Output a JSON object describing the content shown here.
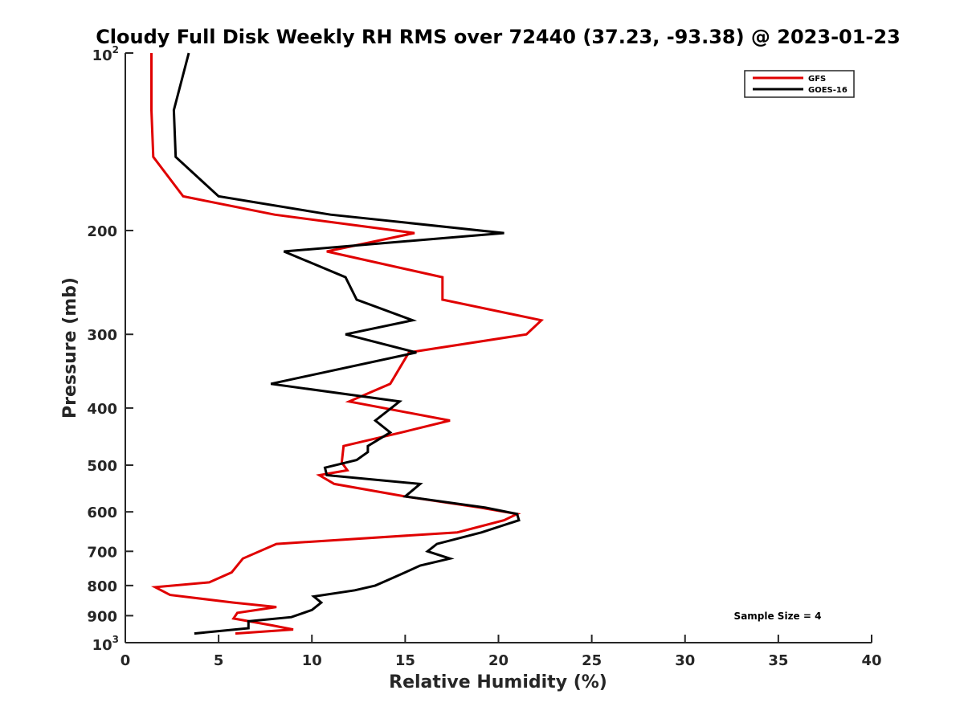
{
  "chart_data": {
    "type": "line",
    "title": "Cloudy Full Disk Weekly RH RMS over 72440 (37.23, -93.38) @ 2023-01-23",
    "xlabel": "Relative Humidity (%)",
    "ylabel": "Pressure (mb)",
    "xlim": [
      0,
      40
    ],
    "ylim": [
      100,
      1000
    ],
    "y_scale": "log",
    "y_reversed": true,
    "grid": false,
    "legend_position": "top-right",
    "x_ticks": [
      "0",
      "5",
      "10",
      "15",
      "20",
      "25",
      "30",
      "35",
      "40"
    ],
    "y_ticks": [
      {
        "value": 100,
        "base": "10",
        "exp": "2"
      },
      {
        "value": 200,
        "label": "200"
      },
      {
        "value": 300,
        "label": "300"
      },
      {
        "value": 400,
        "label": "400"
      },
      {
        "value": 500,
        "label": "500"
      },
      {
        "value": 600,
        "label": "600"
      },
      {
        "value": 700,
        "label": "700"
      },
      {
        "value": 800,
        "label": "800"
      },
      {
        "value": 900,
        "label": "900"
      },
      {
        "value": 1000,
        "base": "10",
        "exp": "3"
      }
    ],
    "annotation": "Sample Size = 4",
    "series": [
      {
        "name": "GFS",
        "color": "#e00000",
        "points": [
          [
            1.4,
            100
          ],
          [
            1.4,
            125
          ],
          [
            1.5,
            150
          ],
          [
            3.1,
            175
          ],
          [
            8.0,
            188
          ],
          [
            15.5,
            202
          ],
          [
            10.8,
            217
          ],
          [
            17.0,
            240
          ],
          [
            17.0,
            262
          ],
          [
            22.3,
            284
          ],
          [
            21.5,
            300
          ],
          [
            15.2,
            322
          ],
          [
            14.2,
            364
          ],
          [
            12.0,
            390
          ],
          [
            17.4,
            420
          ],
          [
            14.8,
            440
          ],
          [
            11.7,
            464
          ],
          [
            11.6,
            495
          ],
          [
            11.9,
            510
          ],
          [
            10.4,
            520
          ],
          [
            11.2,
            538
          ],
          [
            15.0,
            565
          ],
          [
            19.0,
            590
          ],
          [
            21.0,
            605
          ],
          [
            20.3,
            620
          ],
          [
            17.8,
            650
          ],
          [
            8.1,
            680
          ],
          [
            6.3,
            720
          ],
          [
            5.7,
            760
          ],
          [
            4.5,
            790
          ],
          [
            1.6,
            805
          ],
          [
            2.4,
            830
          ],
          [
            5.8,
            855
          ],
          [
            8.1,
            870
          ],
          [
            6.0,
            890
          ],
          [
            5.8,
            910
          ],
          [
            7.9,
            935
          ],
          [
            9.0,
            950
          ],
          [
            5.9,
            965
          ]
        ]
      },
      {
        "name": "GOES-16",
        "color": "#000000",
        "points": [
          [
            3.4,
            100
          ],
          [
            2.6,
            125
          ],
          [
            2.7,
            150
          ],
          [
            5.0,
            175
          ],
          [
            11.0,
            188
          ],
          [
            20.3,
            202
          ],
          [
            8.5,
            217
          ],
          [
            11.8,
            240
          ],
          [
            12.4,
            262
          ],
          [
            15.4,
            284
          ],
          [
            11.8,
            300
          ],
          [
            15.6,
            322
          ],
          [
            7.8,
            364
          ],
          [
            14.7,
            390
          ],
          [
            13.4,
            420
          ],
          [
            14.2,
            440
          ],
          [
            13.0,
            464
          ],
          [
            13.0,
            475
          ],
          [
            12.4,
            490
          ],
          [
            10.7,
            505
          ],
          [
            10.8,
            520
          ],
          [
            15.8,
            538
          ],
          [
            15.0,
            565
          ],
          [
            19.3,
            590
          ],
          [
            21.0,
            605
          ],
          [
            21.1,
            620
          ],
          [
            19.1,
            650
          ],
          [
            16.7,
            680
          ],
          [
            16.2,
            700
          ],
          [
            17.4,
            720
          ],
          [
            15.8,
            740
          ],
          [
            15.0,
            760
          ],
          [
            14.2,
            780
          ],
          [
            13.4,
            800
          ],
          [
            12.3,
            815
          ],
          [
            10.1,
            835
          ],
          [
            10.5,
            855
          ],
          [
            10.0,
            880
          ],
          [
            8.9,
            905
          ],
          [
            6.6,
            920
          ],
          [
            6.6,
            945
          ],
          [
            3.7,
            965
          ]
        ]
      }
    ]
  }
}
